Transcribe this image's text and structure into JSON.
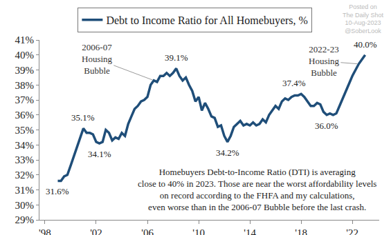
{
  "chart_data": {
    "type": "line",
    "x": [
      1999.0,
      1999.25,
      1999.5,
      1999.75,
      2000.0,
      2000.25,
      2000.5,
      2000.75,
      2001.0,
      2001.25,
      2001.5,
      2001.75,
      2002.0,
      2002.25,
      2002.5,
      2002.75,
      2003.0,
      2003.25,
      2003.5,
      2003.75,
      2004.0,
      2004.25,
      2004.5,
      2004.75,
      2005.0,
      2005.25,
      2005.5,
      2005.75,
      2006.0,
      2006.25,
      2006.5,
      2006.75,
      2007.0,
      2007.25,
      2007.5,
      2007.75,
      2008.0,
      2008.25,
      2008.5,
      2008.75,
      2009.0,
      2009.25,
      2009.5,
      2009.75,
      2010.0,
      2010.25,
      2010.5,
      2010.75,
      2011.0,
      2011.25,
      2011.5,
      2011.75,
      2012.0,
      2012.25,
      2012.5,
      2012.75,
      2013.0,
      2013.25,
      2013.5,
      2013.75,
      2014.0,
      2014.25,
      2014.5,
      2014.75,
      2015.0,
      2015.25,
      2015.5,
      2015.75,
      2016.0,
      2016.25,
      2016.5,
      2016.75,
      2017.0,
      2017.25,
      2017.5,
      2017.75,
      2018.0,
      2018.25,
      2018.5,
      2018.75,
      2019.0,
      2019.25,
      2019.5,
      2019.75,
      2020.0,
      2020.25,
      2020.5,
      2020.75,
      2021.0,
      2021.25,
      2021.5,
      2021.75,
      2022.0,
      2022.25,
      2022.5,
      2022.75,
      2023.0
    ],
    "series": [
      {
        "name": "Debt to Income Ratio for All Homebuyers, %",
        "color": "#1f4e79",
        "values": [
          31.6,
          31.6,
          31.9,
          32.0,
          32.6,
          33.2,
          33.9,
          34.4,
          35.1,
          34.8,
          34.8,
          34.7,
          34.2,
          34.1,
          34.2,
          35.0,
          34.8,
          34.3,
          34.5,
          34.4,
          34.8,
          34.6,
          35.4,
          35.9,
          36.4,
          36.6,
          36.9,
          37.0,
          37.2,
          38.0,
          38.3,
          38.2,
          38.6,
          38.6,
          38.8,
          38.6,
          38.8,
          39.1,
          38.6,
          38.3,
          38.5,
          38.0,
          37.6,
          36.9,
          37.2,
          36.3,
          36.8,
          36.4,
          35.9,
          35.8,
          35.2,
          35.3,
          34.6,
          34.2,
          34.6,
          35.2,
          35.4,
          35.6,
          35.3,
          35.4,
          35.3,
          35.5,
          35.3,
          35.4,
          35.7,
          35.5,
          36.0,
          36.3,
          36.6,
          36.4,
          36.9,
          37.1,
          37.0,
          37.2,
          37.3,
          37.3,
          37.4,
          37.2,
          36.9,
          36.6,
          36.6,
          36.8,
          36.7,
          36.2,
          36.0,
          36.1,
          36.0,
          36.1,
          36.6,
          37.1,
          37.5,
          38.0,
          38.6,
          39.0,
          39.4,
          39.7,
          40.0
        ]
      }
    ],
    "xlim": [
      1997.57,
      2024.1
    ],
    "xticks": [
      {
        "value": 1998,
        "label": "'98"
      },
      {
        "value": 2002,
        "label": "'02"
      },
      {
        "value": 2006,
        "label": "'06"
      },
      {
        "value": 2010,
        "label": "'10"
      },
      {
        "value": 2014,
        "label": "'14"
      },
      {
        "value": 2018,
        "label": "'18"
      },
      {
        "value": 2022,
        "label": "'22"
      }
    ],
    "ylim": [
      29,
      41
    ],
    "yticks": [
      {
        "value": 29,
        "label": "29%"
      },
      {
        "value": 30,
        "label": "30%"
      },
      {
        "value": 31,
        "label": "31%"
      },
      {
        "value": 32,
        "label": "32%"
      },
      {
        "value": 33,
        "label": "33%"
      },
      {
        "value": 34,
        "label": "34%"
      },
      {
        "value": 35,
        "label": "35%"
      },
      {
        "value": 36,
        "label": "36%"
      },
      {
        "value": 37,
        "label": "37%"
      },
      {
        "value": 38,
        "label": "38%"
      },
      {
        "value": 39,
        "label": "39%"
      },
      {
        "value": 40,
        "label": "40%"
      },
      {
        "value": 41,
        "label": "41%"
      }
    ],
    "grid": false,
    "legend": "top",
    "annotations": [
      {
        "text": "31.6%",
        "x": 1999.0,
        "y": 31.6
      },
      {
        "text": "35.1%",
        "x": 2001.0,
        "y": 35.1
      },
      {
        "text": "34.1%",
        "x": 2002.25,
        "y": 34.1
      },
      {
        "text": "2006-07 Housing Bubble",
        "x": 2006.5,
        "y": 38.3
      },
      {
        "text": "39.1%",
        "x": 2008.25,
        "y": 39.1
      },
      {
        "text": "34.2%",
        "x": 2012.25,
        "y": 34.2
      },
      {
        "text": "37.4%",
        "x": 2018.0,
        "y": 37.4
      },
      {
        "text": "2022-23 Housing Bubble",
        "x": 2022.5,
        "y": 39.4
      },
      {
        "text": "36.0%",
        "x": 2020.0,
        "y": 36.0
      },
      {
        "text": "40.0%",
        "x": 2023.0,
        "y": 40.0
      }
    ],
    "note": [
      "Homebuyers Debt-to-Income Ratio (DTI) is averaging",
      "close to 40% in 2023. Those are near the worst affordability levels",
      "on record according to the FHFA and my calculations,",
      "even worse than in the 2006-07 Bubble before the last crash."
    ],
    "watermark": [
      "Posted on",
      "The Daily Shot",
      "10-Aug-2023",
      "@SoberLook"
    ]
  }
}
